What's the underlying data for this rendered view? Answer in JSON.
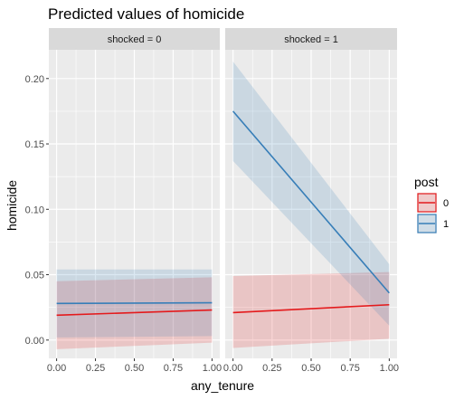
{
  "chart_data": {
    "type": "line",
    "title": "Predicted values of homicide",
    "xlabel": "any_tenure",
    "ylabel": "homicide",
    "xlim": [
      -0.05,
      1.05
    ],
    "ylim": [
      -0.014,
      0.222
    ],
    "x_ticks": [
      0,
      0.25,
      0.5,
      0.75,
      1
    ],
    "x_tick_labels": [
      "0.00",
      "0.25",
      "0.50",
      "0.75",
      "1.00"
    ],
    "y_ticks": [
      0,
      0.05,
      0.1,
      0.15,
      0.2
    ],
    "y_tick_labels": [
      "0.00",
      "0.05",
      "0.10",
      "0.15",
      "0.20"
    ],
    "grid": true,
    "legend": {
      "title": "post",
      "position": "right",
      "entries": [
        {
          "label": "0",
          "color": "#E41A1C"
        },
        {
          "label": "1",
          "color": "#377EB8"
        }
      ]
    },
    "panels": [
      {
        "label": "shocked = 0",
        "series": [
          {
            "post": "0",
            "color": "#E41A1C",
            "x": [
              0,
              1
            ],
            "y": [
              0.019,
              0.023
            ],
            "lower": [
              -0.007,
              -0.002
            ],
            "upper": [
              0.045,
              0.048
            ]
          },
          {
            "post": "1",
            "color": "#377EB8",
            "x": [
              0,
              1
            ],
            "y": [
              0.028,
              0.0285
            ],
            "lower": [
              0.002,
              0.003
            ],
            "upper": [
              0.054,
              0.054
            ]
          }
        ]
      },
      {
        "label": "shocked = 1",
        "series": [
          {
            "post": "0",
            "color": "#E41A1C",
            "x": [
              0,
              1
            ],
            "y": [
              0.021,
              0.027
            ],
            "lower": [
              -0.006,
              0.001
            ],
            "upper": [
              0.049,
              0.052
            ]
          },
          {
            "post": "1",
            "color": "#377EB8",
            "x": [
              0,
              1
            ],
            "y": [
              0.175,
              0.036
            ],
            "lower": [
              0.137,
              0.011
            ],
            "upper": [
              0.213,
              0.058
            ]
          }
        ]
      }
    ]
  }
}
